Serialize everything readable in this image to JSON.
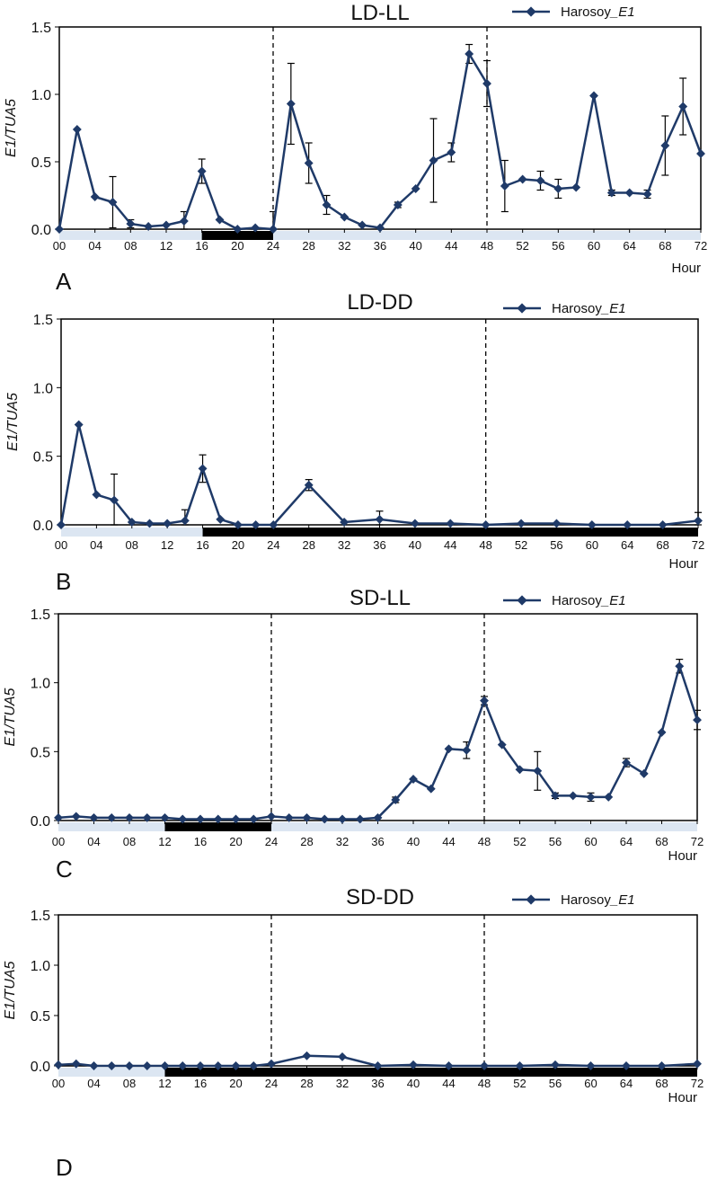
{
  "figure": {
    "x_unit_label": "Hour",
    "y_label": "E1/TUA5",
    "series_color": "#1f3a68",
    "light_bar_color": "#dce6f2",
    "dark_bar_color": "#000000"
  },
  "chart_data": [
    {
      "type": "line",
      "panel_letter": "A",
      "title": "LD-LL",
      "legend": {
        "prefix": "Harosoy",
        "italic": "_E1",
        "placement": "top-right"
      },
      "xlabel": "Hour",
      "ylabel": "E1/TUA5",
      "xlim": [
        0,
        72
      ],
      "ylim": [
        0,
        1.5
      ],
      "yticks": [
        0.0,
        0.5,
        1.0,
        1.5
      ],
      "ytick_labels": [
        "0.0",
        "0.5",
        "1.0",
        "1.5"
      ],
      "xticks": [
        "00",
        "04",
        "08",
        "12",
        "16",
        "20",
        "24",
        "28",
        "32",
        "36",
        "40",
        "44",
        "48",
        "52",
        "56",
        "60",
        "64",
        "68",
        "72"
      ],
      "dashed_lines_at": [
        24,
        48
      ],
      "dark_periods": [
        [
          16,
          24
        ]
      ],
      "grid": false,
      "series": [
        {
          "x": [
            0,
            2,
            4,
            6,
            8,
            10,
            12,
            14,
            16,
            18,
            20,
            22,
            24,
            26,
            28,
            30,
            32,
            34,
            36,
            38,
            40,
            42,
            44,
            46,
            48,
            50,
            52,
            54,
            56,
            58,
            60,
            62,
            64,
            66,
            68,
            70,
            72
          ],
          "values": [
            0.0,
            0.74,
            0.24,
            0.2,
            0.04,
            0.02,
            0.03,
            0.06,
            0.43,
            0.07,
            0.0,
            0.01,
            0.0,
            0.93,
            0.49,
            0.18,
            0.09,
            0.03,
            0.01,
            0.18,
            0.3,
            0.51,
            0.57,
            1.3,
            1.08,
            0.32,
            0.37,
            0.36,
            0.3,
            0.31,
            0.99,
            0.27,
            0.27,
            0.26,
            0.62,
            0.91,
            0.56
          ],
          "err": [
            0,
            0,
            0,
            0.19,
            0.03,
            0,
            0,
            0.07,
            0.09,
            0,
            0,
            0,
            0.13,
            0.3,
            0.15,
            0.07,
            0,
            0,
            0,
            0.02,
            0,
            0.31,
            0.07,
            0.07,
            0.17,
            0.19,
            0,
            0.07,
            0.07,
            0,
            0,
            0.02,
            0,
            0.03,
            0.22,
            0.21,
            0
          ]
        }
      ]
    },
    {
      "type": "line",
      "panel_letter": "B",
      "title": "LD-DD",
      "legend": {
        "prefix": "Harosoy",
        "italic": "_E1",
        "placement": "top-right"
      },
      "xlabel": "Hour",
      "ylabel": "E1/TUA5",
      "xlim": [
        0,
        72
      ],
      "ylim": [
        0,
        1.5
      ],
      "yticks": [
        0.0,
        0.5,
        1.0,
        1.5
      ],
      "ytick_labels": [
        "0.0",
        "0.5",
        "1.0",
        "1.5"
      ],
      "xticks": [
        "00",
        "04",
        "08",
        "12",
        "16",
        "20",
        "24",
        "28",
        "32",
        "36",
        "40",
        "44",
        "48",
        "52",
        "56",
        "60",
        "64",
        "68",
        "72"
      ],
      "dashed_lines_at": [
        24,
        48
      ],
      "dark_periods": [
        [
          16,
          72
        ]
      ],
      "grid": false,
      "series": [
        {
          "x": [
            0,
            2,
            4,
            6,
            8,
            10,
            12,
            14,
            16,
            18,
            20,
            22,
            24,
            28,
            32,
            36,
            40,
            44,
            48,
            52,
            56,
            60,
            64,
            68,
            72
          ],
          "values": [
            0.0,
            0.73,
            0.22,
            0.18,
            0.02,
            0.01,
            0.01,
            0.03,
            0.41,
            0.04,
            0.0,
            0.0,
            0.0,
            0.29,
            0.02,
            0.04,
            0.01,
            0.01,
            0.0,
            0.01,
            0.01,
            0.0,
            0.0,
            0.0,
            0.03
          ],
          "err": [
            0,
            0,
            0,
            0.19,
            0,
            0,
            0,
            0.08,
            0.1,
            0,
            0,
            0,
            0,
            0.04,
            0,
            0.06,
            0,
            0,
            0,
            0,
            0,
            0,
            0,
            0,
            0.06
          ]
        }
      ]
    },
    {
      "type": "line",
      "panel_letter": "C",
      "title": "SD-LL",
      "legend": {
        "prefix": "Harosoy",
        "italic": "_E1",
        "placement": "top-right"
      },
      "xlabel": "Hour",
      "ylabel": "E1/TUA5",
      "xlim": [
        0,
        72
      ],
      "ylim": [
        0,
        1.5
      ],
      "yticks": [
        0.0,
        0.5,
        1.0,
        1.5
      ],
      "ytick_labels": [
        "0.0",
        "0.5",
        "1.0",
        "1.5"
      ],
      "xticks": [
        "00",
        "04",
        "08",
        "12",
        "16",
        "20",
        "24",
        "28",
        "32",
        "36",
        "40",
        "44",
        "48",
        "52",
        "56",
        "60",
        "64",
        "68",
        "72"
      ],
      "dashed_lines_at": [
        24,
        48
      ],
      "dark_periods": [
        [
          12,
          24
        ]
      ],
      "grid": false,
      "series": [
        {
          "x": [
            0,
            2,
            4,
            6,
            8,
            10,
            12,
            14,
            16,
            18,
            20,
            22,
            24,
            26,
            28,
            30,
            32,
            34,
            36,
            38,
            40,
            42,
            44,
            46,
            48,
            50,
            52,
            54,
            56,
            58,
            60,
            62,
            64,
            66,
            68,
            70,
            72
          ],
          "values": [
            0.02,
            0.03,
            0.02,
            0.02,
            0.02,
            0.02,
            0.02,
            0.01,
            0.01,
            0.01,
            0.01,
            0.01,
            0.03,
            0.02,
            0.02,
            0.01,
            0.01,
            0.01,
            0.02,
            0.15,
            0.3,
            0.23,
            0.52,
            0.51,
            0.87,
            0.55,
            0.37,
            0.36,
            0.18,
            0.18,
            0.17,
            0.17,
            0.42,
            0.34,
            0.64,
            1.12,
            0.73
          ],
          "err": [
            0,
            0,
            0,
            0,
            0,
            0,
            0,
            0,
            0,
            0,
            0,
            0,
            0,
            0,
            0,
            0,
            0,
            0,
            0,
            0.02,
            0,
            0,
            0,
            0.06,
            0.03,
            0,
            0,
            0.14,
            0.02,
            0,
            0.03,
            0,
            0.03,
            0,
            0,
            0.05,
            0.07
          ]
        }
      ]
    },
    {
      "type": "line",
      "panel_letter": "D",
      "title": "SD-DD",
      "legend": {
        "prefix": "Harosoy",
        "italic": "_E1",
        "placement": "top-right"
      },
      "xlabel": "Hour",
      "ylabel": "E1/TUA5",
      "xlim": [
        0,
        72
      ],
      "ylim": [
        0,
        1.5
      ],
      "yticks": [
        0.0,
        0.5,
        1.0,
        1.5
      ],
      "ytick_labels": [
        "0.0",
        "0.5",
        "1.0",
        "1.5"
      ],
      "xticks": [
        "00",
        "04",
        "08",
        "12",
        "16",
        "20",
        "24",
        "28",
        "32",
        "36",
        "40",
        "44",
        "48",
        "52",
        "56",
        "60",
        "64",
        "68",
        "72"
      ],
      "dashed_lines_at": [
        24,
        48
      ],
      "dark_periods": [
        [
          12,
          72
        ]
      ],
      "grid": false,
      "series": [
        {
          "x": [
            0,
            2,
            4,
            6,
            8,
            10,
            12,
            14,
            16,
            18,
            20,
            22,
            24,
            28,
            32,
            36,
            40,
            44,
            48,
            52,
            56,
            60,
            64,
            68,
            72
          ],
          "values": [
            0.01,
            0.02,
            0.0,
            0.0,
            0.0,
            0.0,
            0.0,
            0.0,
            0.0,
            0.0,
            0.0,
            0.0,
            0.02,
            0.1,
            0.09,
            0.0,
            0.01,
            0.0,
            0.0,
            0.0,
            0.01,
            0.0,
            0.0,
            0.0,
            0.02
          ],
          "err": [
            0,
            0,
            0,
            0,
            0,
            0,
            0,
            0,
            0,
            0,
            0,
            0,
            0,
            0,
            0,
            0,
            0,
            0,
            0,
            0,
            0,
            0,
            0,
            0,
            0
          ]
        }
      ]
    }
  ]
}
